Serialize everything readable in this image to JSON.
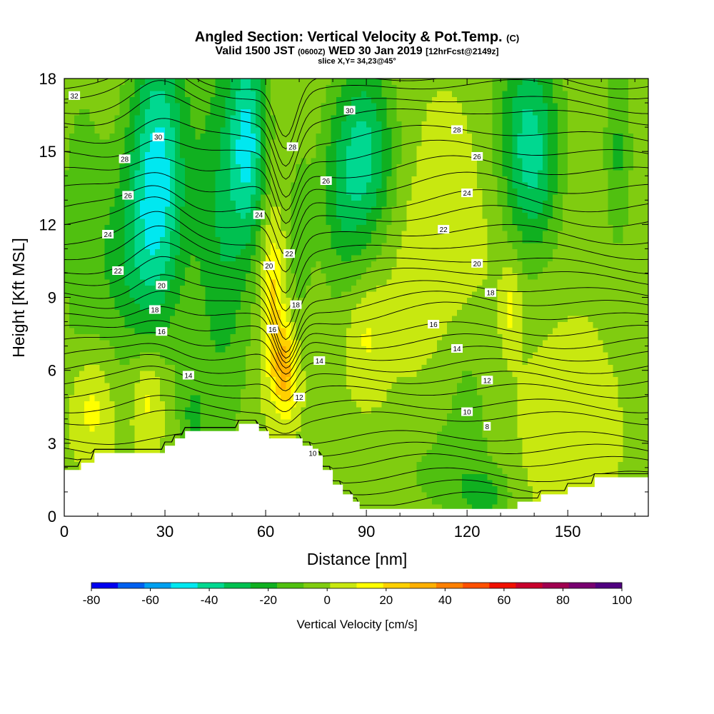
{
  "chart_data": {
    "type": "heatmap",
    "title": "Angled Section: Vertical Velocity & Pot.Temp.",
    "title_mark": "(C)",
    "subtitle": {
      "prefix": "Valid 1500 JST",
      "utc": "(0600Z)",
      "date": "WED 30 Jan 2019",
      "forecast": "[12hrFcst@2149z]"
    },
    "slice_label": "slice X,Y= 34,23@45°",
    "xlabel": "Distance [nm]",
    "ylabel": "Height [Kft MSL]",
    "xlim": [
      0,
      174
    ],
    "ylim": [
      0,
      18
    ],
    "x_ticks": [
      0,
      30,
      60,
      90,
      120,
      150
    ],
    "x_tick_labels": [
      "0",
      "30",
      "60",
      "90",
      "120",
      "150"
    ],
    "y_ticks": [
      0,
      3,
      6,
      9,
      12,
      15,
      18
    ],
    "y_tick_labels": [
      "0",
      "3",
      "6",
      "9",
      "12",
      "15",
      "18"
    ],
    "colorbar": {
      "label": "Vertical Velocity [cm/s]",
      "tick_labels": [
        "-80",
        "-60",
        "-40",
        "-20",
        "0",
        "20",
        "40",
        "60",
        "80",
        "100"
      ],
      "tick_values": [
        -80,
        -60,
        -40,
        -20,
        0,
        20,
        40,
        60,
        80,
        100
      ],
      "colors": [
        "#0000f0",
        "#0060f0",
        "#00a0f0",
        "#00e8f0",
        "#00d890",
        "#00c050",
        "#10b020",
        "#50c010",
        "#80cc10",
        "#c8e810",
        "#ffff00",
        "#ffd000",
        "#ffb000",
        "#ff8000",
        "#ff5000",
        "#f01000",
        "#c8002c",
        "#a00050",
        "#780070",
        "#500080"
      ]
    },
    "terrain_nm_kft": [
      [
        0,
        1.9
      ],
      [
        5,
        1.9
      ],
      [
        5,
        2.2
      ],
      [
        9,
        2.2
      ],
      [
        9,
        2.6
      ],
      [
        30,
        2.6
      ],
      [
        30,
        2.9
      ],
      [
        33,
        2.9
      ],
      [
        33,
        3.2
      ],
      [
        36,
        3.2
      ],
      [
        36,
        3.5
      ],
      [
        52,
        3.5
      ],
      [
        52,
        3.8
      ],
      [
        58,
        3.8
      ],
      [
        58,
        3.5
      ],
      [
        61,
        3.5
      ],
      [
        61,
        3.2
      ],
      [
        71,
        3.2
      ],
      [
        71,
        2.9
      ],
      [
        74,
        2.9
      ],
      [
        74,
        2.5
      ],
      [
        77,
        2.5
      ],
      [
        77,
        1.9
      ],
      [
        80,
        1.9
      ],
      [
        80,
        1.3
      ],
      [
        83,
        1.3
      ],
      [
        83,
        0.9
      ],
      [
        86,
        0.9
      ],
      [
        86,
        0.6
      ],
      [
        88,
        0.6
      ],
      [
        88,
        0.3
      ],
      [
        135,
        0.3
      ],
      [
        135,
        0.6
      ],
      [
        142,
        0.6
      ],
      [
        142,
        0.9
      ],
      [
        150,
        0.9
      ],
      [
        150,
        1.2
      ],
      [
        158,
        1.2
      ],
      [
        158,
        1.6
      ],
      [
        174,
        1.6
      ]
    ],
    "background_w_cm_s": 0,
    "velocity_features": [
      {
        "x": 28,
        "y": 14.5,
        "w": -45,
        "sx": 6,
        "sy": 4.2
      },
      {
        "x": 20,
        "y": 10.5,
        "w": -20,
        "sx": 8,
        "sy": 3
      },
      {
        "x": 5,
        "y": 12,
        "w": -12,
        "sx": 5,
        "sy": 5
      },
      {
        "x": 55,
        "y": 15.5,
        "w": -40,
        "sx": 4,
        "sy": 3
      },
      {
        "x": 47,
        "y": 12,
        "w": -25,
        "sx": 6,
        "sy": 6
      },
      {
        "x": 70,
        "y": 11.5,
        "w": -12,
        "sx": 3,
        "sy": 3
      },
      {
        "x": 90,
        "y": 15,
        "w": -35,
        "sx": 6,
        "sy": 2.8
      },
      {
        "x": 82,
        "y": 13,
        "w": -18,
        "sx": 5,
        "sy": 3
      },
      {
        "x": 138,
        "y": 16,
        "w": -30,
        "sx": 7,
        "sy": 3
      },
      {
        "x": 140,
        "y": 13.5,
        "w": -15,
        "sx": 5,
        "sy": 2.5
      },
      {
        "x": 165,
        "y": 15,
        "w": -18,
        "sx": 3,
        "sy": 3
      },
      {
        "x": 62,
        "y": 9,
        "w": 22,
        "sx": 2.5,
        "sy": 2.5
      },
      {
        "x": 66,
        "y": 6,
        "w": 30,
        "sx": 2.5,
        "sy": 1.3
      },
      {
        "x": 8,
        "y": 4.5,
        "w": 16,
        "sx": 4,
        "sy": 1.5
      },
      {
        "x": 25,
        "y": 5,
        "w": 16,
        "sx": 3,
        "sy": 1.5
      },
      {
        "x": 90,
        "y": 7.5,
        "w": 12,
        "sx": 4,
        "sy": 1.5
      },
      {
        "x": 133,
        "y": 8.6,
        "w": 14,
        "sx": 2,
        "sy": 1.2
      },
      {
        "x": 115,
        "y": 11.5,
        "w": 8,
        "sx": 9,
        "sy": 3
      },
      {
        "x": 150,
        "y": 3.5,
        "w": 8,
        "sx": 8,
        "sy": 2.5
      },
      {
        "x": 112,
        "y": 1.7,
        "w": -10,
        "sx": 10,
        "sy": 1.4
      },
      {
        "x": 126,
        "y": 0.8,
        "w": -18,
        "sx": 5,
        "sy": 0.8
      },
      {
        "x": 120,
        "y": 5,
        "w": -10,
        "sx": 6,
        "sy": 3
      },
      {
        "x": 38,
        "y": 4,
        "w": -15,
        "sx": 3,
        "sy": 1.5
      },
      {
        "x": 105,
        "y": 9.5,
        "w": 4,
        "sx": 8,
        "sy": 2
      }
    ],
    "isentrope_levels_C": [
      8,
      10,
      12,
      14,
      16,
      18,
      20,
      22,
      24,
      26,
      28,
      30,
      32
    ],
    "isentrope_base_height_kft": {
      "10": 3.2,
      "12": 5.1,
      "14": 6.6,
      "16": 7.6,
      "18": 8.6,
      "20": 9.7,
      "22": 10.8,
      "24": 12.1,
      "26": 13.4,
      "28": 14.8,
      "30": 16.3,
      "32": 17.4
    },
    "isentrope_labels": [
      {
        "text": "32",
        "x": 3,
        "y": 17.3
      },
      {
        "text": "30",
        "x": 28,
        "y": 15.6
      },
      {
        "text": "28",
        "x": 18,
        "y": 14.7
      },
      {
        "text": "26",
        "x": 19,
        "y": 13.2
      },
      {
        "text": "24",
        "x": 13,
        "y": 11.6
      },
      {
        "text": "22",
        "x": 16,
        "y": 10.1
      },
      {
        "text": "20",
        "x": 29,
        "y": 9.5
      },
      {
        "text": "18",
        "x": 27,
        "y": 8.5
      },
      {
        "text": "16",
        "x": 29,
        "y": 7.6
      },
      {
        "text": "14",
        "x": 37,
        "y": 5.8
      },
      {
        "text": "24",
        "x": 58,
        "y": 12.4
      },
      {
        "text": "20",
        "x": 61,
        "y": 10.3
      },
      {
        "text": "22",
        "x": 67,
        "y": 10.8
      },
      {
        "text": "18",
        "x": 69,
        "y": 8.7
      },
      {
        "text": "16",
        "x": 62,
        "y": 7.7
      },
      {
        "text": "14",
        "x": 76,
        "y": 6.4
      },
      {
        "text": "12",
        "x": 70,
        "y": 4.9
      },
      {
        "text": "10",
        "x": 74,
        "y": 2.6
      },
      {
        "text": "28",
        "x": 68,
        "y": 15.2
      },
      {
        "text": "26",
        "x": 78,
        "y": 13.8
      },
      {
        "text": "30",
        "x": 85,
        "y": 16.7
      },
      {
        "text": "28",
        "x": 117,
        "y": 15.9
      },
      {
        "text": "26",
        "x": 123,
        "y": 14.8
      },
      {
        "text": "24",
        "x": 120,
        "y": 13.3
      },
      {
        "text": "22",
        "x": 113,
        "y": 11.8
      },
      {
        "text": "20",
        "x": 123,
        "y": 10.4
      },
      {
        "text": "18",
        "x": 127,
        "y": 9.2
      },
      {
        "text": "16",
        "x": 110,
        "y": 7.9
      },
      {
        "text": "14",
        "x": 117,
        "y": 6.9
      },
      {
        "text": "12",
        "x": 126,
        "y": 5.6
      },
      {
        "text": "10",
        "x": 120,
        "y": 4.3
      },
      {
        "text": "8",
        "x": 126,
        "y": 3.7
      }
    ]
  }
}
